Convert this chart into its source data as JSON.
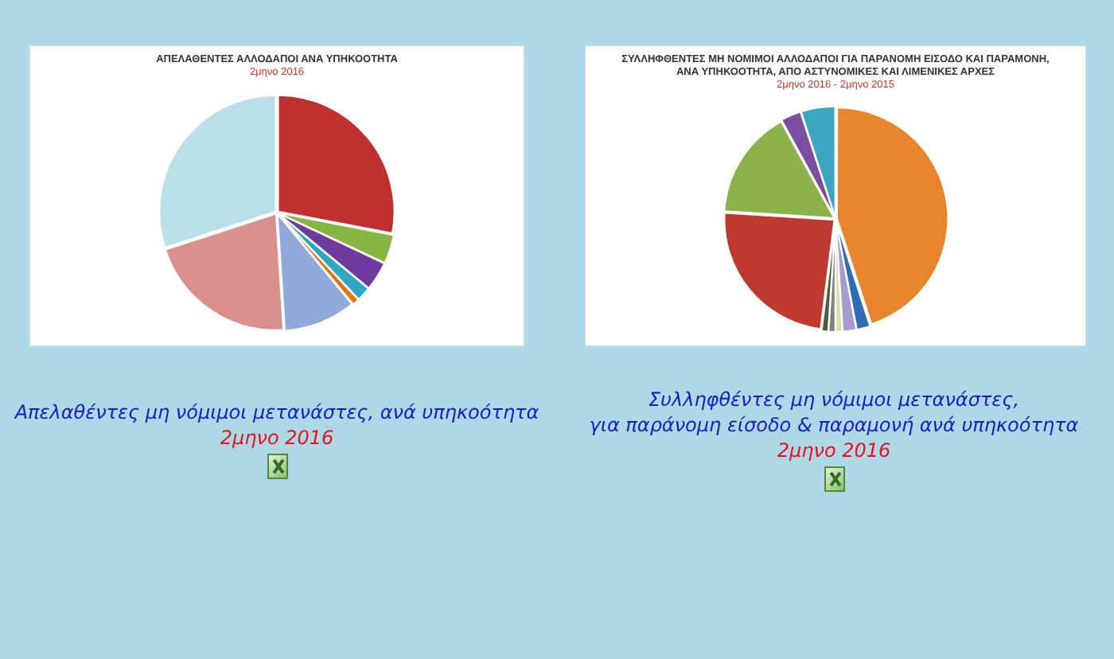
{
  "chart_data": [
    {
      "type": "pie",
      "title": "ΑΠΕΛΑΘΕΝΤΕΣ ΑΛΛΟΔΑΠΟΙ ΑΝΑ ΥΠΗΚΟΟΤΗΤΑ",
      "subtitle": "2μηνο 2016",
      "categories": [
        null,
        null,
        null,
        null,
        null,
        null,
        null,
        null
      ],
      "values": [
        28,
        4,
        4,
        2,
        1,
        10,
        21,
        30
      ],
      "colors": [
        "#c0302e",
        "#86b441",
        "#6f3a9e",
        "#2fa6c2",
        "#e3740f",
        "#8fa9d9",
        "#d98f8c",
        "#b9dfea"
      ],
      "annotations": [
        "Απελαθέντες μη νόμιμοι μετανάστες, ανά υπηκοότητα",
        "2μηνο 2016"
      ]
    },
    {
      "type": "pie",
      "title": "ΣΥΛΛΗΦΘΕΝΤΕΣ ΜΗ ΝΟΜΙΜΟΙ ΑΛΛΟΔΑΠΟΙ ΓΙΑ ΠΑΡΑΝΟΜΗ ΕΙΣΟΔΟ ΚΑΙ ΠΑΡΑΜΟΝΗ, ΑΝΑ ΥΠΗΚΟΟΤΗΤΑ, ΑΠΟ ΑΣΤΥΝΟΜΙΚΕΣ ΚΑΙ ΛΙΜΕΝΙΚΕΣ ΑΡΧΕΣ",
      "subtitle": "2μηνο 2016 - 2μηνο 2015",
      "categories": [
        null,
        null,
        null,
        null,
        null,
        null,
        null,
        null,
        null,
        null
      ],
      "values": [
        45,
        2,
        2,
        1,
        1,
        1,
        24,
        16,
        3,
        5
      ],
      "colors": [
        "#e8852c",
        "#2f6db5",
        "#a99bd0",
        "#d6e3a0",
        "#7f7f7f",
        "#4f5b3a",
        "#c0392f",
        "#8cb34a",
        "#7b4ea3",
        "#3aa6c0"
      ],
      "annotations": [
        "Συλληφθέντες μη νόμιμοι μετανάστες,",
        "για παράνομη είσοδο & παραμονή ανά υπηκοότητα",
        "2μηνο 2016"
      ]
    }
  ]
}
